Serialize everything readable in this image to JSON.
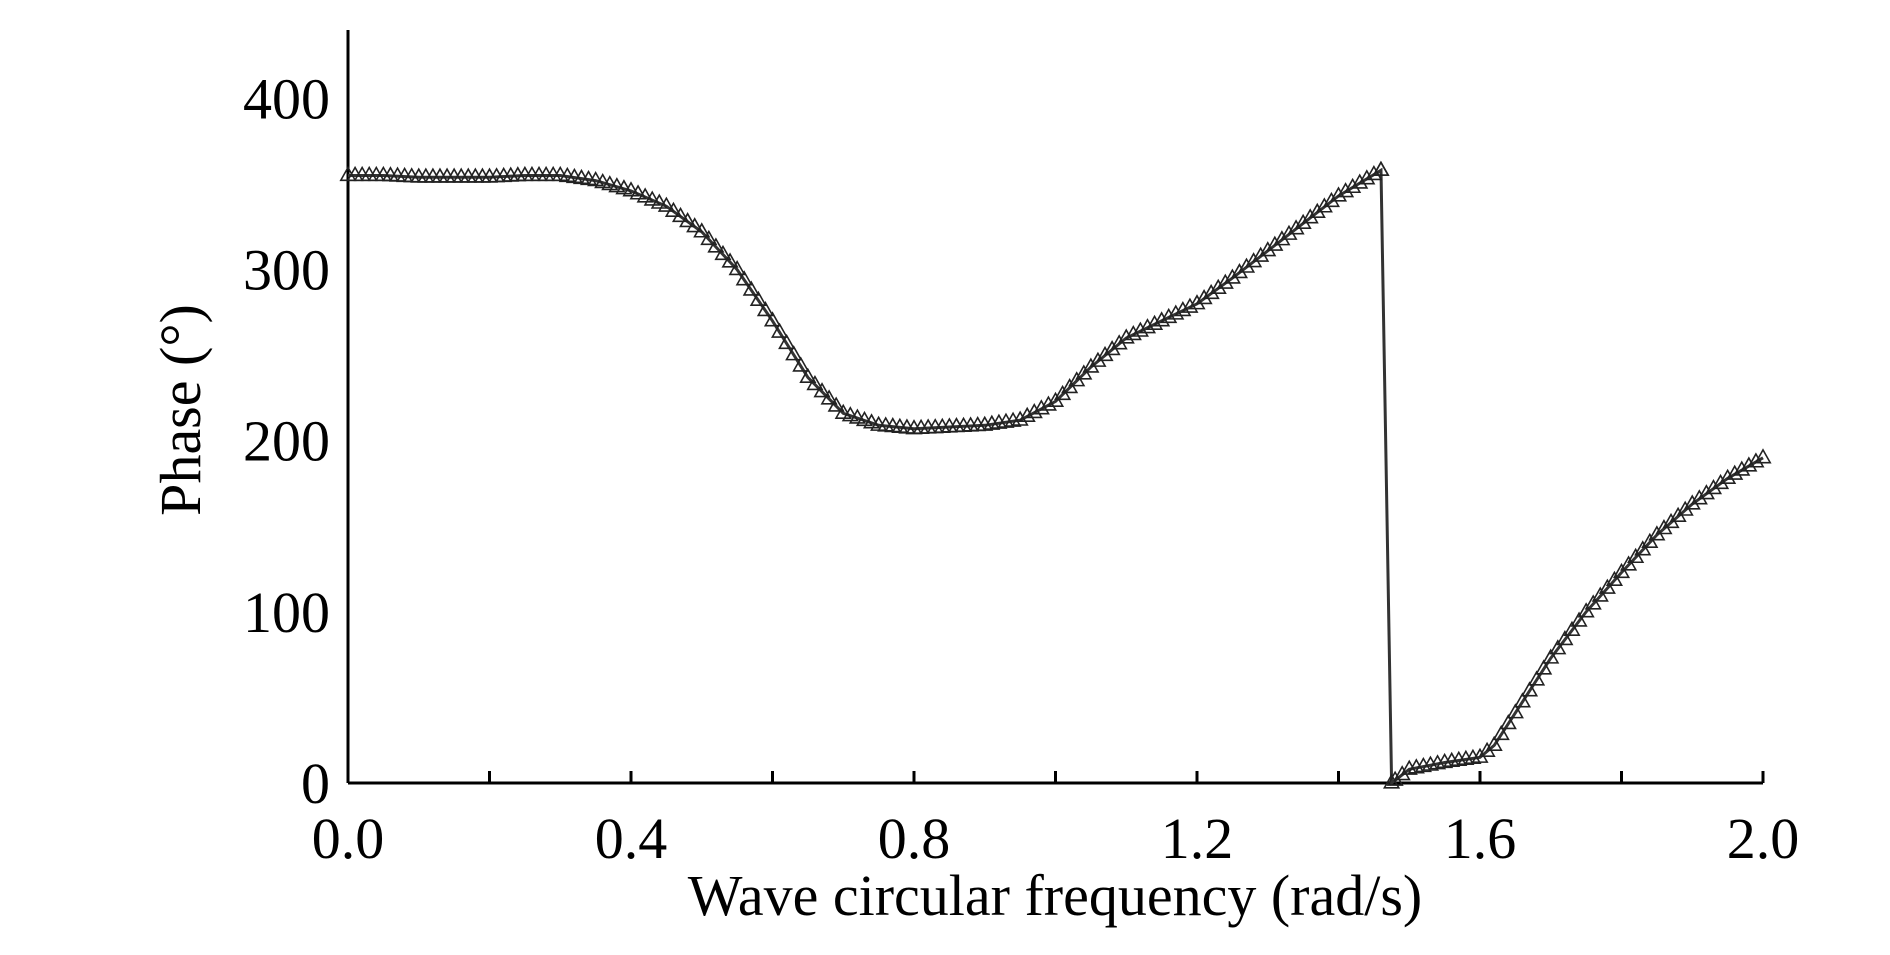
{
  "chart_data": {
    "type": "line",
    "xlabel": "Wave circular frequency (rad/s)",
    "ylabel": "Phase (°)",
    "xlim": [
      0.0,
      2.0
    ],
    "ylim": [
      0,
      440
    ],
    "xticks": [
      "0.0",
      "0.4",
      "0.8",
      "1.2",
      "1.6",
      "2.0"
    ],
    "yticks": [
      "0",
      "100",
      "200",
      "300",
      "400"
    ],
    "grid": false,
    "marker": "triangle",
    "line_color": "#333333",
    "series": [
      {
        "values": [
          [
            0.0,
            355
          ],
          [
            0.05,
            355
          ],
          [
            0.1,
            354
          ],
          [
            0.15,
            354
          ],
          [
            0.2,
            354
          ],
          [
            0.25,
            355
          ],
          [
            0.3,
            355
          ],
          [
            0.35,
            352
          ],
          [
            0.4,
            346
          ],
          [
            0.45,
            337
          ],
          [
            0.5,
            322
          ],
          [
            0.55,
            300
          ],
          [
            0.6,
            270
          ],
          [
            0.65,
            237
          ],
          [
            0.7,
            216
          ],
          [
            0.75,
            209
          ],
          [
            0.8,
            207
          ],
          [
            0.85,
            208
          ],
          [
            0.9,
            209
          ],
          [
            0.95,
            212
          ],
          [
            1.0,
            223
          ],
          [
            1.05,
            243
          ],
          [
            1.1,
            260
          ],
          [
            1.15,
            270
          ],
          [
            1.2,
            280
          ],
          [
            1.25,
            295
          ],
          [
            1.3,
            311
          ],
          [
            1.35,
            327
          ],
          [
            1.4,
            343
          ],
          [
            1.46,
            358
          ],
          [
            1.475,
            0
          ],
          [
            1.5,
            8
          ],
          [
            1.55,
            12
          ],
          [
            1.6,
            15
          ],
          [
            1.62,
            22
          ],
          [
            1.65,
            41
          ],
          [
            1.7,
            73
          ],
          [
            1.75,
            100
          ],
          [
            1.8,
            123
          ],
          [
            1.85,
            145
          ],
          [
            1.9,
            163
          ],
          [
            1.95,
            178
          ],
          [
            2.0,
            190
          ]
        ]
      }
    ]
  }
}
